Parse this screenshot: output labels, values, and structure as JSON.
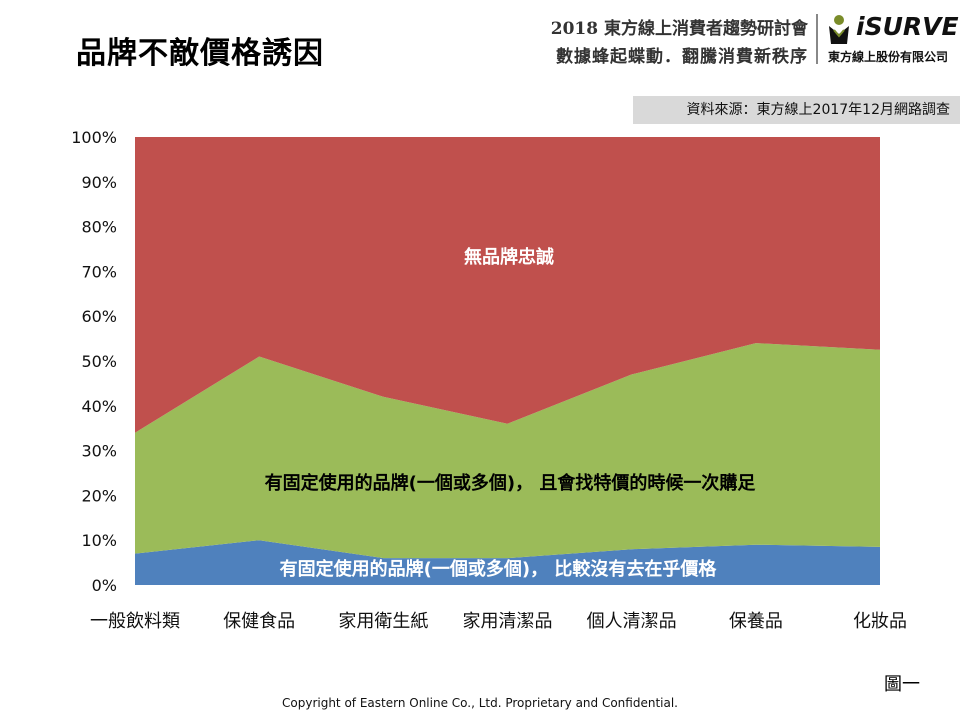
{
  "header": {
    "title": "品牌不敵價格誘因",
    "event_line1": "2018 東方線上消費者趨勢研討會",
    "event_line2": "數據蜂起蝶動．翻騰消費新秩序",
    "logo_text": "iSURVEY",
    "logo_subtitle": "東方線上股份有限公司"
  },
  "source_note": "資料來源：東方線上2017年12月網路調查",
  "figure_label": "圖一",
  "footer": {
    "copyright": "Copyright of Eastern Online  Co., Ltd. Proprietary and Confidential."
  },
  "chart_data": {
    "type": "area",
    "stacked": true,
    "percent": true,
    "categories": [
      "一般飲料類",
      "保健食品",
      "家用衛生紙",
      "家用清潔品",
      "個人清潔品",
      "保養品",
      "化妝品"
    ],
    "ylim": [
      0,
      100
    ],
    "yticks": [
      "0%",
      "10%",
      "20%",
      "30%",
      "40%",
      "50%",
      "60%",
      "70%",
      "80%",
      "90%",
      "100%"
    ],
    "grid": false,
    "series": [
      {
        "name": "有固定使用的品牌(一個或多個)， 比較沒有去在乎價格",
        "color": "#4f81bd",
        "values": [
          7,
          10,
          6,
          6,
          8,
          9,
          8.5
        ]
      },
      {
        "name": "有固定使用的品牌(一個或多個)， 且會找特價的時候一次購足",
        "color": "#9bbb59",
        "values": [
          27,
          41,
          36,
          30,
          39,
          45,
          44
        ]
      },
      {
        "name": "無品牌忠誠",
        "color": "#c0504d",
        "values": [
          66,
          49,
          58,
          64,
          53,
          46,
          47.5
        ]
      }
    ]
  }
}
